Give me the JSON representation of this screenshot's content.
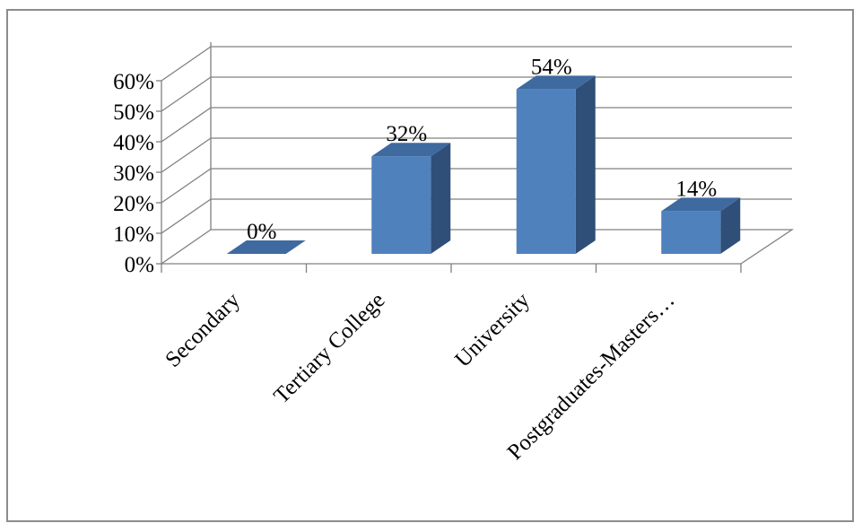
{
  "chart_data": {
    "type": "bar",
    "style": "3d-column",
    "categories": [
      "Secondary",
      "Tertiary College",
      "University",
      "Postgraduates-Masters…"
    ],
    "values": [
      0,
      32,
      54,
      14
    ],
    "data_labels": [
      "0%",
      "32%",
      "54%",
      "14%"
    ],
    "y_ticks": [
      "0%",
      "10%",
      "20%",
      "30%",
      "40%",
      "50%",
      "60%"
    ],
    "ylim": [
      0,
      60
    ],
    "grid": true,
    "legend": "none",
    "colors": {
      "bar_front": "#4f81bd",
      "bar_side": "#2f4f78",
      "bar_top": "#3e6aa0",
      "grid": "#808080"
    }
  }
}
